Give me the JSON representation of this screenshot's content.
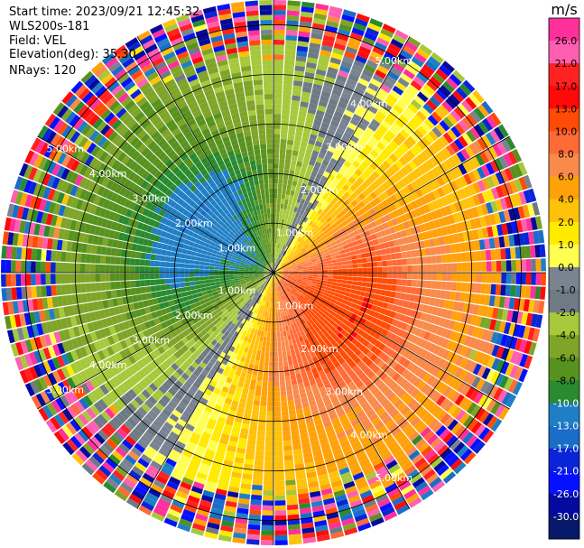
{
  "chart_data": {
    "type": "ppi",
    "header_lines": [
      "Start time: 2023/09/21 12:45:32",
      "WLS200s-181",
      "Field: VEL",
      "Elevation(deg): 35.30",
      "NRays: 120"
    ],
    "field": "VEL",
    "n_rays": 120,
    "elevation_deg": 35.3,
    "max_range_km": 5.5,
    "range_rings_km": [
      1,
      2,
      3,
      4,
      5
    ],
    "ring_labels": [
      "1.00km",
      "2.00km",
      "3.00km",
      "4.00km",
      "5.00km"
    ],
    "grid": true,
    "wind_pattern": {
      "toward_azimuth_deg": 300,
      "away_azimuth_deg": 120,
      "peak_speed_ms": [
        9,
        11,
        13,
        8,
        6
      ]
    },
    "colorbar": {
      "unit_label": "m/s",
      "tick_labels": [
        "26.0",
        "21.0",
        "17.0",
        "13.0",
        "10.0",
        "8.0",
        "6.0",
        "4.0",
        "2.0",
        "1.0",
        "0.0",
        "-1.0",
        "-2.0",
        "-4.0",
        "-6.0",
        "-8.0",
        "-10.0",
        "-13.0",
        "-17.0",
        "-21.0",
        "-26.0",
        "-30.0"
      ],
      "bounds": [
        30,
        26,
        21,
        17,
        13,
        10,
        8,
        6,
        4,
        2,
        1,
        0,
        -1,
        -2,
        -4,
        -6,
        -8,
        -10,
        -13,
        -17,
        -21,
        -26,
        -30
      ],
      "colors": [
        "#ff2f9c",
        "#ff5fb0",
        "#ff2220",
        "#ff0a0a",
        "#ff4b05",
        "#ff6a35",
        "#fa8a4a",
        "#ffa20a",
        "#ffc20a",
        "#ffea00",
        "#ffff50",
        "#7a8490",
        "#6e7a84",
        "#a6c83a",
        "#7ea428",
        "#58921e",
        "#2a8a2e",
        "#1f7fc4",
        "#1a6dc8",
        "#0a24d8",
        "#0410ff",
        "#050a9e",
        "#07196a"
      ]
    }
  }
}
